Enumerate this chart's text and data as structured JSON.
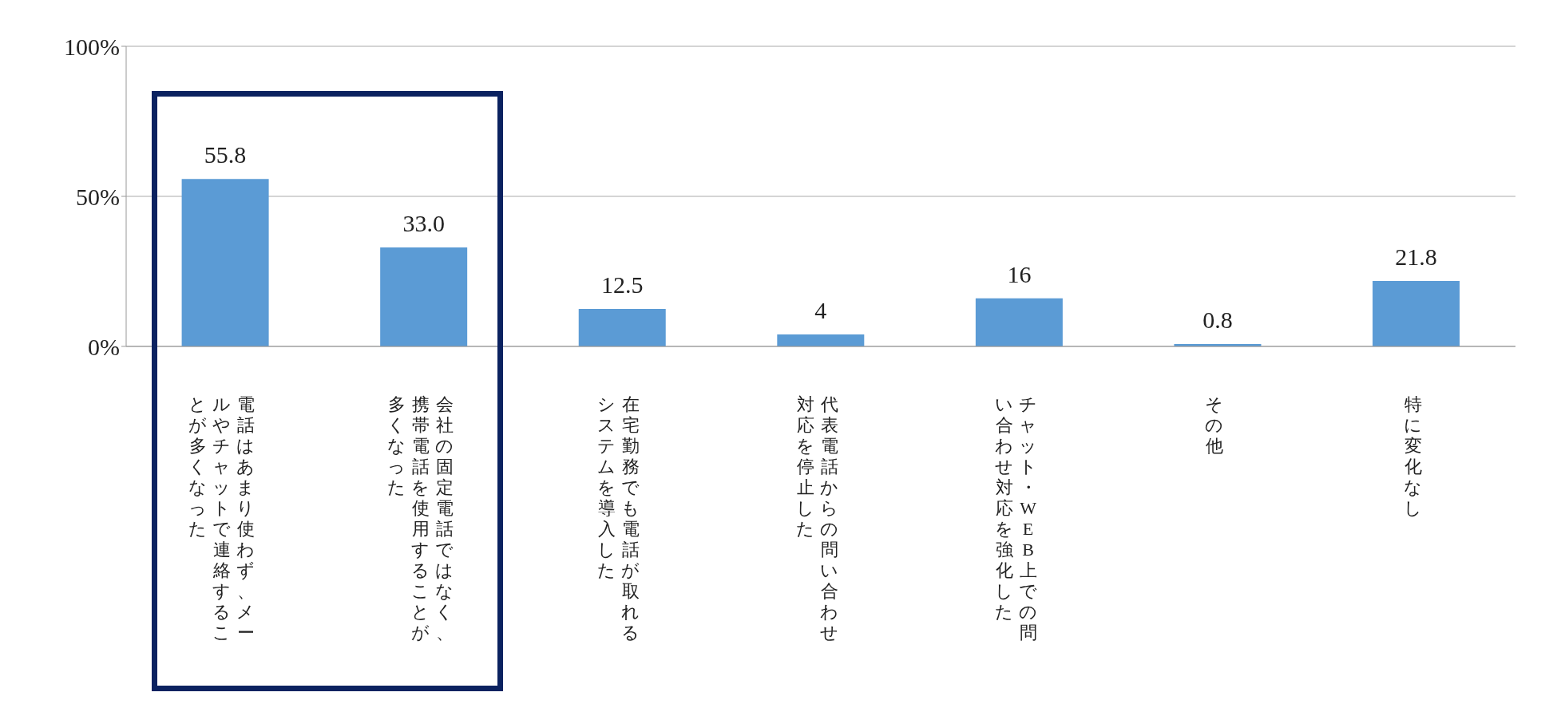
{
  "chart_data": {
    "type": "bar",
    "categories": [
      "電話はあまり使わず、メールやチャットで連絡することが多くなった",
      "会社の固定電話ではなく、携帯電話を使用することが多くなった",
      "在宅勤務でも電話が取れるシステムを導入した",
      "代表電話からの問い合わせ対応を停止した",
      "チャット・WEB上での問い合わせ対応を強化した",
      "その他",
      "特に変化なし"
    ],
    "values": [
      55.8,
      33.0,
      12.5,
      4,
      16,
      0.8,
      21.8
    ],
    "value_labels": [
      "55.8",
      "33.0",
      "12.5",
      "4",
      "16",
      "0.8",
      "21.8"
    ],
    "color": "#5b9bd5",
    "ylim": [
      0,
      100
    ],
    "yticks": [
      {
        "value": 0,
        "label": "0%"
      },
      {
        "value": 50,
        "label": "50%"
      },
      {
        "value": 100,
        "label": "100%"
      }
    ],
    "grid": "y"
  }
}
